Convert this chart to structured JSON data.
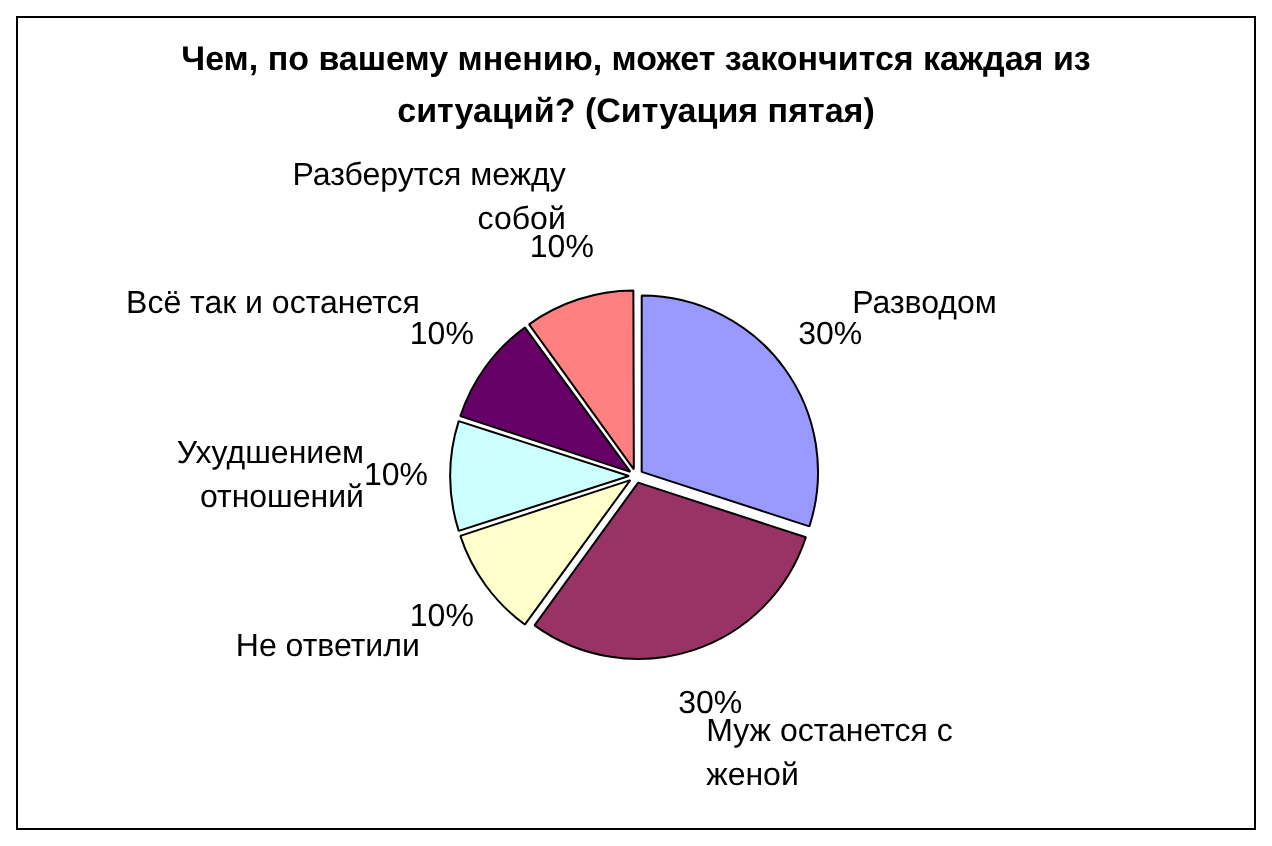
{
  "chart_data": {
    "type": "pie",
    "title": "Чем, по вашему мнению, может закончится каждая из ситуаций? (Ситуация пятая)",
    "categories": [
      "Разводом",
      "Муж останется с женой",
      "Не ответили",
      "Ухудшением отношений",
      "Всё так и останется",
      "Разберутся между собой"
    ],
    "values": [
      30,
      30,
      10,
      10,
      10,
      10
    ],
    "value_labels": [
      "30%",
      "30%",
      "10%",
      "10%",
      "10%",
      "10%"
    ],
    "colors": [
      "#9999ff",
      "#993366",
      "#ffffcc",
      "#ccffff",
      "#660066",
      "#ff8080"
    ]
  }
}
